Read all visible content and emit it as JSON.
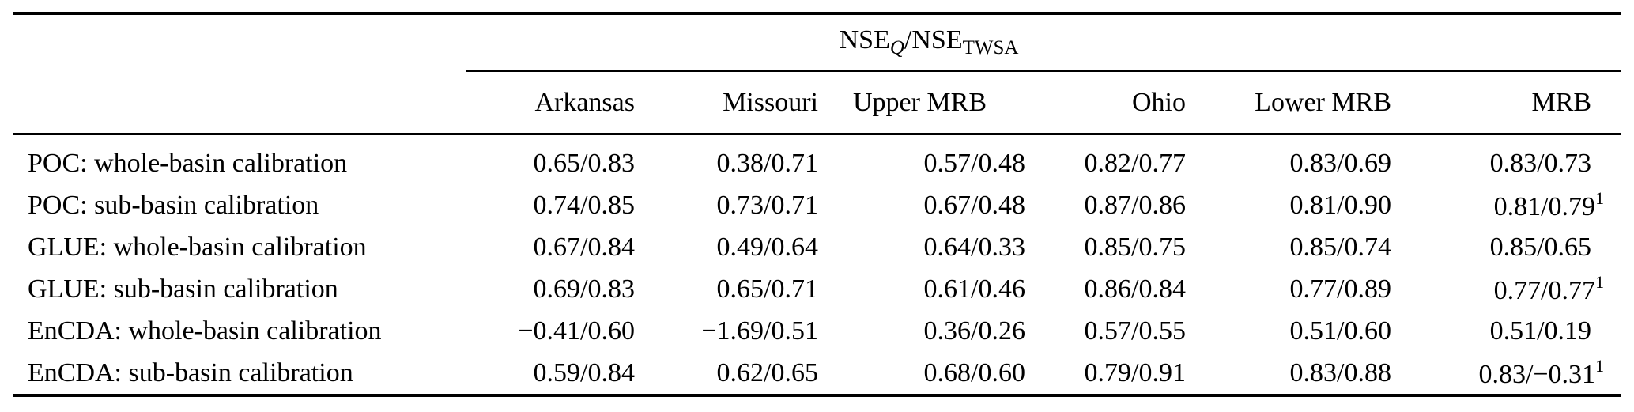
{
  "table": {
    "group_header_parts": [
      {
        "text": "NSE",
        "sub": false,
        "italic": false
      },
      {
        "text": "Q",
        "sub": true,
        "italic": true
      },
      {
        "text": "/",
        "sub": false,
        "italic": false
      },
      {
        "text": "NSE",
        "sub": false,
        "italic": false
      },
      {
        "text": "TWSA",
        "sub": true,
        "italic": false
      }
    ],
    "columns": [
      "Arkansas",
      "Missouri",
      "Upper MRB",
      "Ohio",
      "Lower MRB",
      "MRB"
    ],
    "rows": [
      {
        "label": "POC: whole-basin calibration",
        "values": [
          "0.65/0.83",
          "0.38/0.71",
          "0.57/0.48",
          "0.82/0.77",
          "0.83/0.69",
          "0.83/0.73"
        ],
        "footnote_marker": ""
      },
      {
        "label": "POC: sub-basin calibration",
        "values": [
          "0.74/0.85",
          "0.73/0.71",
          "0.67/0.48",
          "0.87/0.86",
          "0.81/0.90",
          "0.81/0.79"
        ],
        "footnote_marker": "1"
      },
      {
        "label": "GLUE: whole-basin calibration",
        "values": [
          "0.67/0.84",
          "0.49/0.64",
          "0.64/0.33",
          "0.85/0.75",
          "0.85/0.74",
          "0.85/0.65"
        ],
        "footnote_marker": ""
      },
      {
        "label": "GLUE: sub-basin calibration",
        "values": [
          "0.69/0.83",
          "0.65/0.71",
          "0.61/0.46",
          "0.86/0.84",
          "0.77/0.89",
          "0.77/0.77"
        ],
        "footnote_marker": "1"
      },
      {
        "label": "EnCDA: whole-basin calibration",
        "values": [
          "−0.41/0.60",
          "−1.69/0.51",
          "0.36/0.26",
          "0.57/0.55",
          "0.51/0.60",
          "0.51/0.19"
        ],
        "footnote_marker": ""
      },
      {
        "label": "EnCDA: sub-basin calibration",
        "values": [
          "0.59/0.84",
          "0.62/0.65",
          "0.68/0.60",
          "0.79/0.91",
          "0.83/0.88",
          "0.83/−0.31"
        ],
        "footnote_marker": "1"
      }
    ],
    "colors": {
      "rule": "#000000",
      "text": "#000000",
      "background": "#ffffff"
    }
  }
}
